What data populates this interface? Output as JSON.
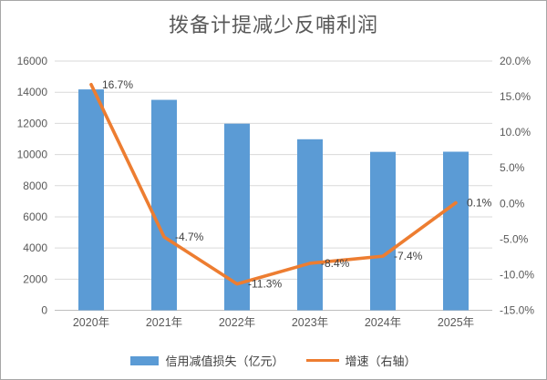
{
  "window": {
    "background": "#ffffff",
    "border_color": "#a6a6a6"
  },
  "chart_data": {
    "type": "combo-bar-line",
    "title": "拨备计提减少反哺利润",
    "categories": [
      "2020年",
      "2021年",
      "2022年",
      "2023年",
      "2024年",
      "2025年"
    ],
    "series": [
      {
        "name": "信用减值损失（亿元）",
        "type": "bar",
        "axis": "left",
        "color": "#5B9BD5",
        "values": [
          14180,
          13510,
          11980,
          10980,
          10170,
          10180
        ]
      },
      {
        "name": "增速（右轴）",
        "type": "line",
        "axis": "right",
        "color": "#ED7D31",
        "values": [
          16.7,
          -4.7,
          -11.3,
          -8.4,
          -7.4,
          0.1
        ],
        "point_labels": [
          "16.7%",
          "-4.7%",
          "-11.3%",
          "-8.4%",
          "-7.4%",
          "0.1%"
        ]
      }
    ],
    "left_axis": {
      "min": 0,
      "max": 16000,
      "step": 2000,
      "tick_labels": [
        "0",
        "2000",
        "4000",
        "6000",
        "8000",
        "10000",
        "12000",
        "14000",
        "16000"
      ]
    },
    "right_axis": {
      "min": -15,
      "max": 20,
      "step": 5,
      "tick_labels": [
        "20.0%",
        "15.0%",
        "10.0%",
        "5.0%",
        "0.0%",
        "-5.0%",
        "-10.0%",
        "-15.0%"
      ]
    },
    "grid": true,
    "legend_position": "bottom",
    "colors": {
      "gridline": "#d9d9d9",
      "axis_line": "#bfbfbf",
      "tick_text": "#595959",
      "data_label_text": "#404040",
      "title_text": "#595959"
    }
  }
}
